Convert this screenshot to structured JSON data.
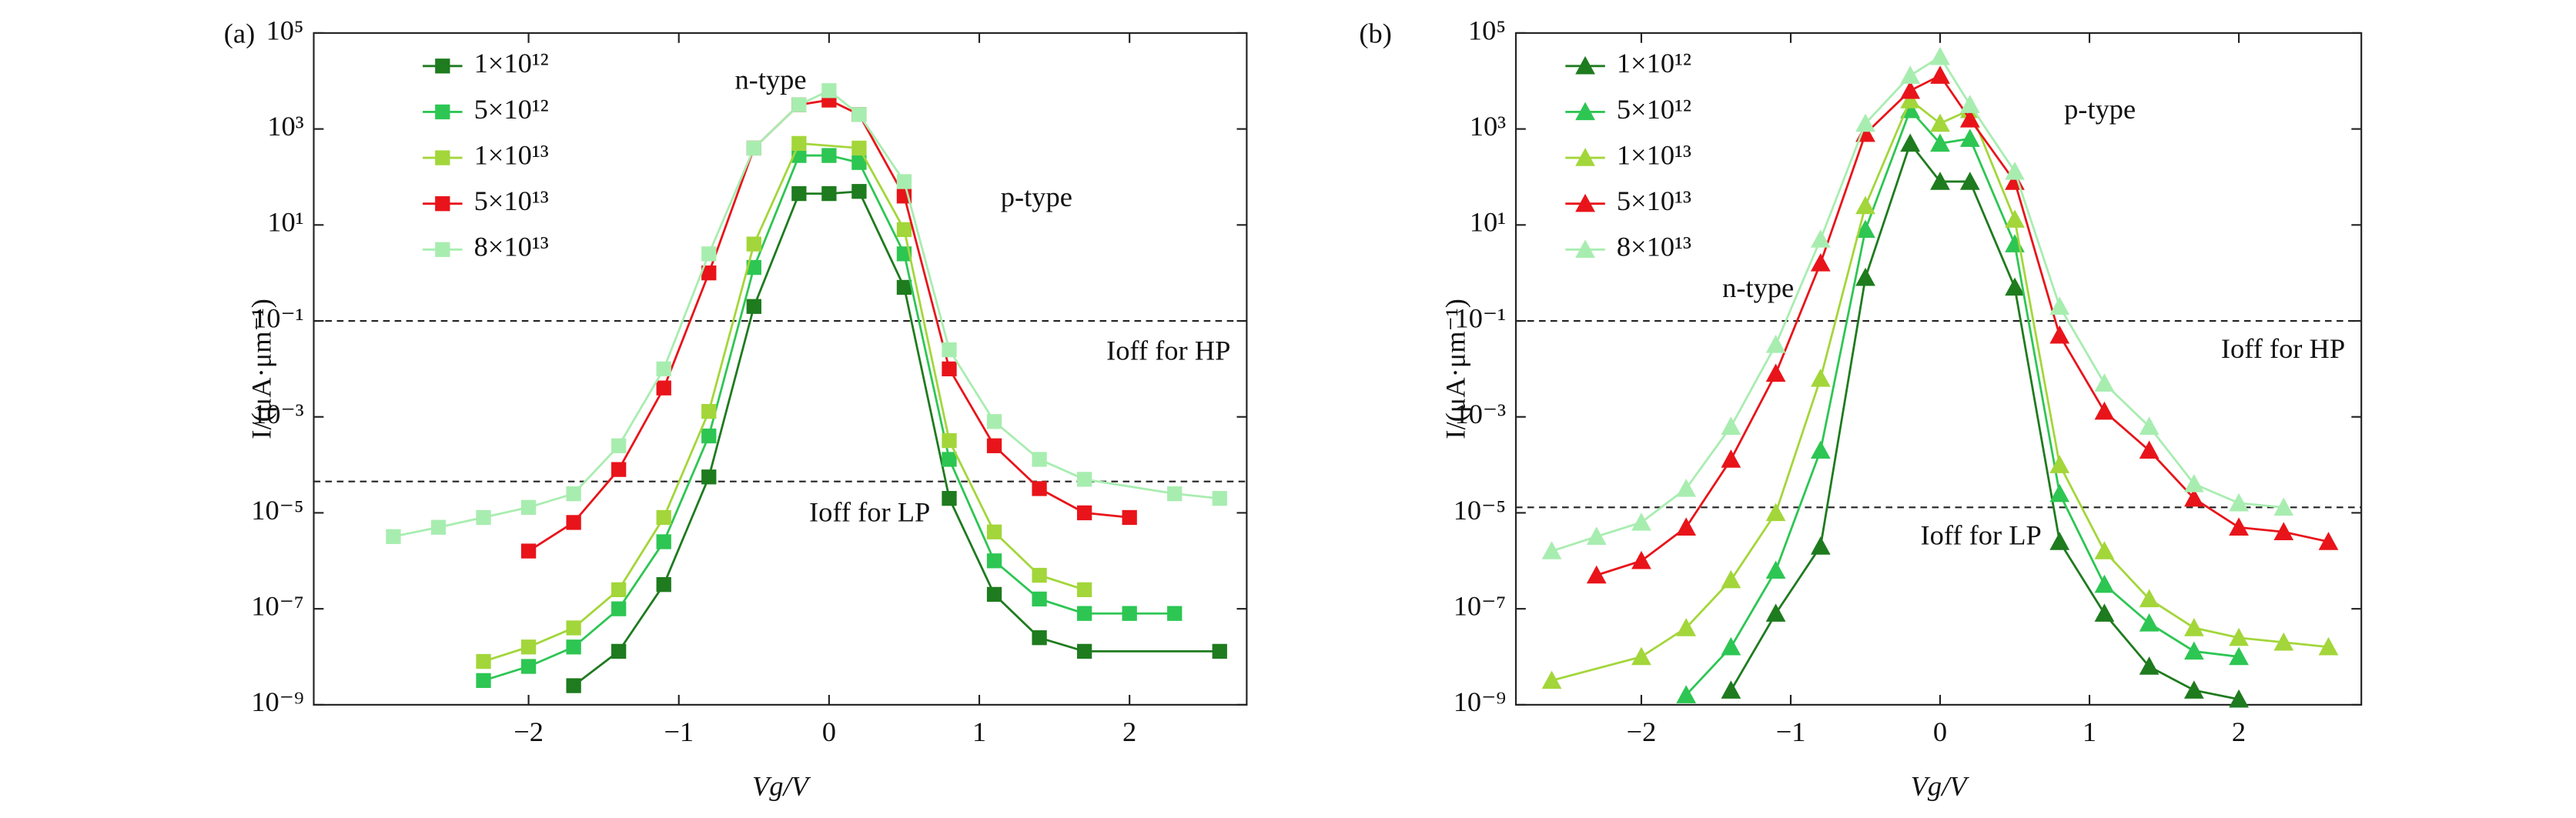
{
  "chart_data": [
    {
      "type": "line",
      "panel_label": "(a)",
      "x_label": "Vg/V",
      "y_label": "I/(μA·μm⁻¹)",
      "log_y": true,
      "marker": "square",
      "xlim": [
        -3.43,
        2.78
      ],
      "xticks": [
        {
          "value": -2,
          "label": "−2"
        },
        {
          "value": -1,
          "label": "−1"
        },
        0,
        1,
        2
      ],
      "ylim": [
        1e-09,
        100000
      ],
      "yticks": [
        {
          "value": 100000,
          "label": "10⁵"
        },
        {
          "value": 1000,
          "label": "10³"
        },
        {
          "value": 10,
          "label": "10¹"
        },
        {
          "value": 0.1,
          "label": "10⁻¹"
        },
        {
          "value": 0.001,
          "label": "10⁻³"
        },
        {
          "value": 1e-05,
          "label": "10⁻⁵"
        },
        {
          "value": 1e-07,
          "label": "10⁻⁷"
        },
        {
          "value": 1e-09,
          "label": "10⁻⁹"
        }
      ],
      "hlines": [
        0.1,
        4.5e-05
      ],
      "annotations": [
        "n-type",
        "p-type",
        "Ioff for HP",
        "Ioff for LP"
      ],
      "series": [
        {
          "name": "1×10¹²",
          "color": "#1e7b1e",
          "x": [
            -1.7,
            -1.4,
            -1.1,
            -0.8,
            -0.5,
            -0.2,
            0,
            0.2,
            0.5,
            0.8,
            1.1,
            1.4,
            1.7,
            2.6
          ],
          "values": [
            2.5e-09,
            1.3e-08,
            3.2e-07,
            5.6e-05,
            0.2,
            45,
            45,
            50,
            0.5,
            2e-05,
            2e-07,
            2.5e-08,
            1.3e-08,
            1.3e-08
          ]
        },
        {
          "name": "5×10¹²",
          "color": "#2dc653",
          "x": [
            -2.3,
            -2.0,
            -1.7,
            -1.4,
            -1.1,
            -0.8,
            -0.5,
            -0.2,
            0,
            0.2,
            0.5,
            0.8,
            1.1,
            1.4,
            1.7,
            2.0,
            2.3
          ],
          "values": [
            3.2e-09,
            6.3e-09,
            1.6e-08,
            1e-07,
            2.5e-06,
            0.0004,
            1.3,
            280,
            280,
            200,
            2.5,
            0.00013,
            1e-06,
            1.6e-07,
            8e-08,
            8e-08,
            8e-08
          ]
        },
        {
          "name": "1×10¹³",
          "color": "#a3d63a",
          "x": [
            -2.3,
            -2.0,
            -1.7,
            -1.4,
            -1.1,
            -0.8,
            -0.5,
            -0.2,
            0.2,
            0.5,
            0.8,
            1.1,
            1.4,
            1.7
          ],
          "values": [
            8e-09,
            1.6e-08,
            4e-08,
            2.5e-07,
            8e-06,
            0.0013,
            4,
            500,
            400,
            8,
            0.00032,
            4e-06,
            5e-07,
            2.5e-07
          ]
        },
        {
          "name": "5×10¹³",
          "color": "#e8141a",
          "x": [
            -2.0,
            -1.7,
            -1.4,
            -1.1,
            -0.8,
            -0.5,
            -0.2,
            0,
            0.2,
            0.5,
            0.8,
            1.1,
            1.4,
            1.7,
            2.0
          ],
          "values": [
            1.6e-06,
            6.3e-06,
            8e-05,
            0.004,
            1,
            400,
            3200,
            4000,
            2000,
            40,
            0.01,
            0.00025,
            3.2e-05,
            1e-05,
            8e-06
          ]
        },
        {
          "name": "8×10¹³",
          "color": "#a8edb0",
          "x": [
            -2.9,
            -2.6,
            -2.3,
            -2.0,
            -1.7,
            -1.4,
            -1.1,
            -0.8,
            -0.5,
            -0.2,
            0,
            0.2,
            0.5,
            0.8,
            1.1,
            1.4,
            1.7,
            2.3,
            2.6
          ],
          "values": [
            3.2e-06,
            5e-06,
            8e-06,
            1.3e-05,
            2.5e-05,
            0.00025,
            0.01,
            2.5,
            400,
            3200,
            6300,
            2000,
            80,
            0.025,
            0.0008,
            0.00013,
            5e-05,
            2.5e-05,
            2e-05
          ]
        }
      ]
    },
    {
      "type": "line",
      "panel_label": "(b)",
      "x_label": "Vg/V",
      "y_label": "I/(μA·μm⁻¹)",
      "log_y": true,
      "marker": "triangle",
      "xlim": [
        -2.84,
        2.82
      ],
      "xticks": [
        {
          "value": -2,
          "label": "−2"
        },
        {
          "value": -1,
          "label": "−1"
        },
        0,
        1,
        2
      ],
      "ylim": [
        1e-09,
        100000
      ],
      "yticks": [
        {
          "value": 100000,
          "label": "10⁵"
        },
        {
          "value": 1000,
          "label": "10³"
        },
        {
          "value": 10,
          "label": "10¹"
        },
        {
          "value": 0.1,
          "label": "10⁻¹"
        },
        {
          "value": 0.001,
          "label": "10⁻³"
        },
        {
          "value": 1e-05,
          "label": "10⁻⁵"
        },
        {
          "value": 1e-07,
          "label": "10⁻⁷"
        },
        {
          "value": 1e-09,
          "label": "10⁻⁹"
        }
      ],
      "hlines": [
        0.1,
        1.3e-05
      ],
      "annotations": [
        "p-type",
        "n-type",
        "Ioff for HP",
        "Ioff for LP"
      ],
      "series": [
        {
          "name": "1×10¹²",
          "color": "#1e7b1e",
          "x": [
            -1.4,
            -1.1,
            -0.8,
            -0.5,
            -0.2,
            0,
            0.2,
            0.5,
            0.8,
            1.1,
            1.4,
            1.7,
            2.0
          ],
          "values": [
            2e-09,
            8e-08,
            2e-06,
            0.8,
            500,
            80,
            80,
            0.5,
            2.5e-06,
            8e-08,
            6.3e-09,
            2e-09,
            1.3e-09
          ]
        },
        {
          "name": "5×10¹²",
          "color": "#2dc653",
          "x": [
            -1.7,
            -1.4,
            -1.1,
            -0.8,
            -0.5,
            -0.2,
            0,
            0.2,
            0.5,
            0.8,
            1.1,
            1.4,
            1.7,
            2.0
          ],
          "values": [
            1.6e-09,
            1.6e-08,
            6.3e-07,
            0.0002,
            8,
            2500,
            500,
            630,
            4,
            2.5e-05,
            3.2e-07,
            5e-08,
            1.3e-08,
            1e-08
          ]
        },
        {
          "name": "1×10¹³",
          "color": "#a3d63a",
          "x": [
            -2.6,
            -2.0,
            -1.7,
            -1.4,
            -1.1,
            -0.8,
            -0.5,
            -0.2,
            0,
            0.2,
            0.5,
            0.8,
            1.1,
            1.4,
            1.7,
            2.0,
            2.3,
            2.6
          ],
          "values": [
            3.2e-09,
            1e-08,
            4e-08,
            4e-07,
            1e-05,
            0.0063,
            25,
            4000,
            1300,
            2500,
            13,
            0.0001,
            1.6e-06,
            1.6e-07,
            4e-08,
            2.5e-08,
            2e-08,
            1.6e-08
          ]
        },
        {
          "name": "5×10¹³",
          "color": "#e8141a",
          "x": [
            -2.3,
            -2.0,
            -1.7,
            -1.4,
            -1.1,
            -0.8,
            -0.5,
            -0.2,
            0,
            0.2,
            0.5,
            0.8,
            1.1,
            1.4,
            1.7,
            2.0,
            2.3,
            2.6
          ],
          "values": [
            5e-07,
            1e-06,
            5e-06,
            0.00013,
            0.008,
            1.6,
            800,
            6300,
            13000,
            1600,
            80,
            0.05,
            0.0013,
            0.0002,
            2e-05,
            5e-06,
            4e-06,
            2.5e-06
          ]
        },
        {
          "name": "8×10¹³",
          "color": "#a8edb0",
          "x": [
            -2.6,
            -2.3,
            -2.0,
            -1.7,
            -1.4,
            -1.1,
            -0.8,
            -0.5,
            -0.2,
            0,
            0.2,
            0.5,
            0.8,
            1.1,
            1.4,
            1.7,
            2.0,
            2.3
          ],
          "values": [
            1.6e-06,
            3.2e-06,
            6.3e-06,
            3.2e-05,
            0.00063,
            0.032,
            5,
            1300,
            13000,
            32000,
            3200,
            130,
            0.2,
            0.005,
            0.00063,
            4e-05,
            1.6e-05,
            1.3e-05
          ]
        }
      ]
    }
  ]
}
